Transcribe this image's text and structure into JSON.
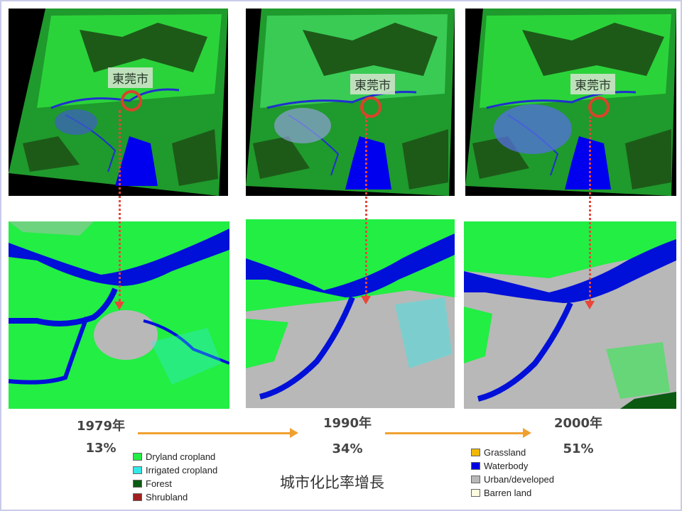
{
  "panels": [
    {
      "city_label": "東莞市",
      "year": "1979年",
      "urban_share": "13%"
    },
    {
      "city_label": "東莞市",
      "year": "1990年",
      "urban_share": "34%"
    },
    {
      "city_label": "東莞市",
      "year": "2000年",
      "urban_share": "51%"
    }
  ],
  "legend_left": [
    {
      "label": "Dryland cropland",
      "color": "#22ee44"
    },
    {
      "label": "Irrigated cropland",
      "color": "#33e8e8"
    },
    {
      "label": "Forest",
      "color": "#0a5a12"
    },
    {
      "label": "Shrubland",
      "color": "#a02020"
    }
  ],
  "legend_right": [
    {
      "label": "Grassland",
      "color": "#f0b800"
    },
    {
      "label": "Waterbody",
      "color": "#0000e0"
    },
    {
      "label": "Urban/developed",
      "color": "#b8b8b8"
    },
    {
      "label": "Barren land",
      "color": "#fffbe0"
    }
  ],
  "caption": "城市化比率增長",
  "colors": {
    "arrow": "#f0a030",
    "marker": "#e8463a"
  }
}
